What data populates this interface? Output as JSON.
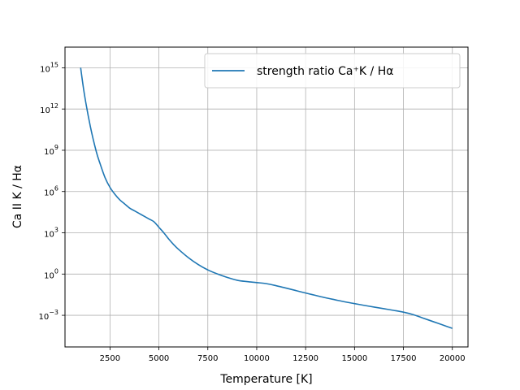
{
  "colors": {
    "series_line": "#1f77b4",
    "grid": "#b0b0b0",
    "axes": "#000000",
    "legend_border": "#cccccc"
  },
  "chart_data": {
    "type": "line",
    "title": "",
    "xlabel": "Temperature [K]",
    "ylabel": "Ca II K / Hα",
    "xlim": [
      200,
      20800
    ],
    "ylim_log10": [
      -5.3,
      16.5
    ],
    "yscale": "log",
    "grid": true,
    "legend_position": "top-right",
    "x_ticks": [
      2500,
      5000,
      7500,
      10000,
      12500,
      15000,
      17500,
      20000
    ],
    "x_tick_labels": [
      "2500",
      "5000",
      "7500",
      "10000",
      "12500",
      "15000",
      "17500",
      "20000"
    ],
    "y_ticks": [
      {
        "exponent": 15,
        "base": "10",
        "power": "15"
      },
      {
        "exponent": 12,
        "base": "10",
        "power": "12"
      },
      {
        "exponent": 9,
        "base": "10",
        "power": "9"
      },
      {
        "exponent": 6,
        "base": "10",
        "power": "6"
      },
      {
        "exponent": 3,
        "base": "10",
        "power": "3"
      },
      {
        "exponent": 0,
        "base": "10",
        "power": "0"
      },
      {
        "exponent": -3,
        "base": "10",
        "power": "−3"
      }
    ],
    "series": [
      {
        "name": "strength ratio Ca⁺K / Hα",
        "x": [
          1000,
          1200,
          1500,
          1800,
          2000,
          2250,
          2500,
          2750,
          3000,
          3250,
          3500,
          3750,
          4000,
          4250,
          4500,
          4750,
          5000,
          5250,
          5500,
          5750,
          6000,
          6500,
          7000,
          7500,
          8000,
          8500,
          9000,
          9500,
          10000,
          10500,
          11000,
          11500,
          12000,
          12500,
          13000,
          13500,
          14000,
          14500,
          15000,
          15500,
          16000,
          16500,
          17000,
          17500,
          18000,
          18500,
          19000,
          19500,
          20000
        ],
        "log10_y": [
          15.0,
          13.0,
          10.7,
          8.9,
          8.0,
          7.0,
          6.3,
          5.8,
          5.4,
          5.1,
          4.8,
          4.6,
          4.4,
          4.2,
          4.0,
          3.8,
          3.4,
          3.0,
          2.55,
          2.15,
          1.8,
          1.2,
          0.7,
          0.3,
          0.0,
          -0.25,
          -0.45,
          -0.55,
          -0.62,
          -0.7,
          -0.85,
          -1.02,
          -1.2,
          -1.38,
          -1.55,
          -1.72,
          -1.87,
          -2.02,
          -2.15,
          -2.28,
          -2.4,
          -2.52,
          -2.64,
          -2.77,
          -2.95,
          -3.2,
          -3.45,
          -3.7,
          -3.95
        ]
      }
    ]
  }
}
